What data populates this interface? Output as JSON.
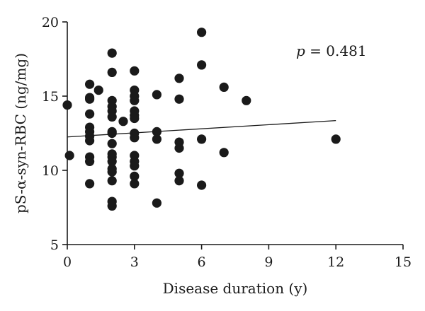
{
  "chart_data": {
    "type": "scatter",
    "xlabel": "Disease duration (y)",
    "ylabel": "pS-α-syn-RBC (ng/mg)",
    "xlim": [
      0,
      15
    ],
    "ylim": [
      5,
      20
    ],
    "xticks": [
      0,
      3,
      6,
      9,
      12,
      15
    ],
    "yticks": [
      5,
      10,
      15,
      20
    ],
    "grid": false,
    "marker_color": "#1a1a1a",
    "annotation": {
      "p_symbol": "p",
      "p_text": " = 0.481"
    },
    "trendline": {
      "x": [
        0,
        12
      ],
      "y": [
        12.25,
        13.35
      ]
    },
    "points": [
      {
        "x": 0,
        "y": 14.4
      },
      {
        "x": 0.1,
        "y": 11.0
      },
      {
        "x": 1,
        "y": 15.8
      },
      {
        "x": 1,
        "y": 14.9
      },
      {
        "x": 1,
        "y": 14.8
      },
      {
        "x": 1,
        "y": 13.8
      },
      {
        "x": 1,
        "y": 12.9
      },
      {
        "x": 1,
        "y": 12.6
      },
      {
        "x": 1,
        "y": 12.3
      },
      {
        "x": 1,
        "y": 12.0
      },
      {
        "x": 1,
        "y": 10.9
      },
      {
        "x": 1,
        "y": 10.6
      },
      {
        "x": 1,
        "y": 9.1
      },
      {
        "x": 1.4,
        "y": 15.4
      },
      {
        "x": 2,
        "y": 17.9
      },
      {
        "x": 2,
        "y": 16.6
      },
      {
        "x": 2,
        "y": 14.7
      },
      {
        "x": 2,
        "y": 14.3
      },
      {
        "x": 2,
        "y": 14.0
      },
      {
        "x": 2,
        "y": 13.6
      },
      {
        "x": 2,
        "y": 12.6
      },
      {
        "x": 2,
        "y": 12.5
      },
      {
        "x": 2,
        "y": 11.8
      },
      {
        "x": 2,
        "y": 11.1
      },
      {
        "x": 2,
        "y": 10.9
      },
      {
        "x": 2,
        "y": 10.6
      },
      {
        "x": 2,
        "y": 10.1
      },
      {
        "x": 2,
        "y": 9.9
      },
      {
        "x": 2,
        "y": 9.3
      },
      {
        "x": 2,
        "y": 7.9
      },
      {
        "x": 2,
        "y": 7.6
      },
      {
        "x": 2.5,
        "y": 13.3
      },
      {
        "x": 3,
        "y": 16.7
      },
      {
        "x": 3,
        "y": 15.4
      },
      {
        "x": 3,
        "y": 15.0
      },
      {
        "x": 3,
        "y": 14.7
      },
      {
        "x": 3,
        "y": 14.0
      },
      {
        "x": 3,
        "y": 13.7
      },
      {
        "x": 3,
        "y": 13.5
      },
      {
        "x": 3,
        "y": 12.5
      },
      {
        "x": 3,
        "y": 12.2
      },
      {
        "x": 3,
        "y": 11.0
      },
      {
        "x": 3,
        "y": 10.6
      },
      {
        "x": 3,
        "y": 10.3
      },
      {
        "x": 3,
        "y": 9.6
      },
      {
        "x": 3,
        "y": 9.1
      },
      {
        "x": 4,
        "y": 15.1
      },
      {
        "x": 4,
        "y": 12.6
      },
      {
        "x": 4,
        "y": 12.1
      },
      {
        "x": 4,
        "y": 7.8
      },
      {
        "x": 5,
        "y": 16.2
      },
      {
        "x": 5,
        "y": 14.8
      },
      {
        "x": 5,
        "y": 11.9
      },
      {
        "x": 5,
        "y": 11.5
      },
      {
        "x": 5,
        "y": 9.8
      },
      {
        "x": 5,
        "y": 9.3
      },
      {
        "x": 6,
        "y": 19.3
      },
      {
        "x": 6,
        "y": 17.1
      },
      {
        "x": 6,
        "y": 12.1
      },
      {
        "x": 6,
        "y": 9.0
      },
      {
        "x": 7,
        "y": 15.6
      },
      {
        "x": 7,
        "y": 11.2
      },
      {
        "x": 8,
        "y": 14.7
      },
      {
        "x": 12,
        "y": 12.1
      }
    ]
  }
}
